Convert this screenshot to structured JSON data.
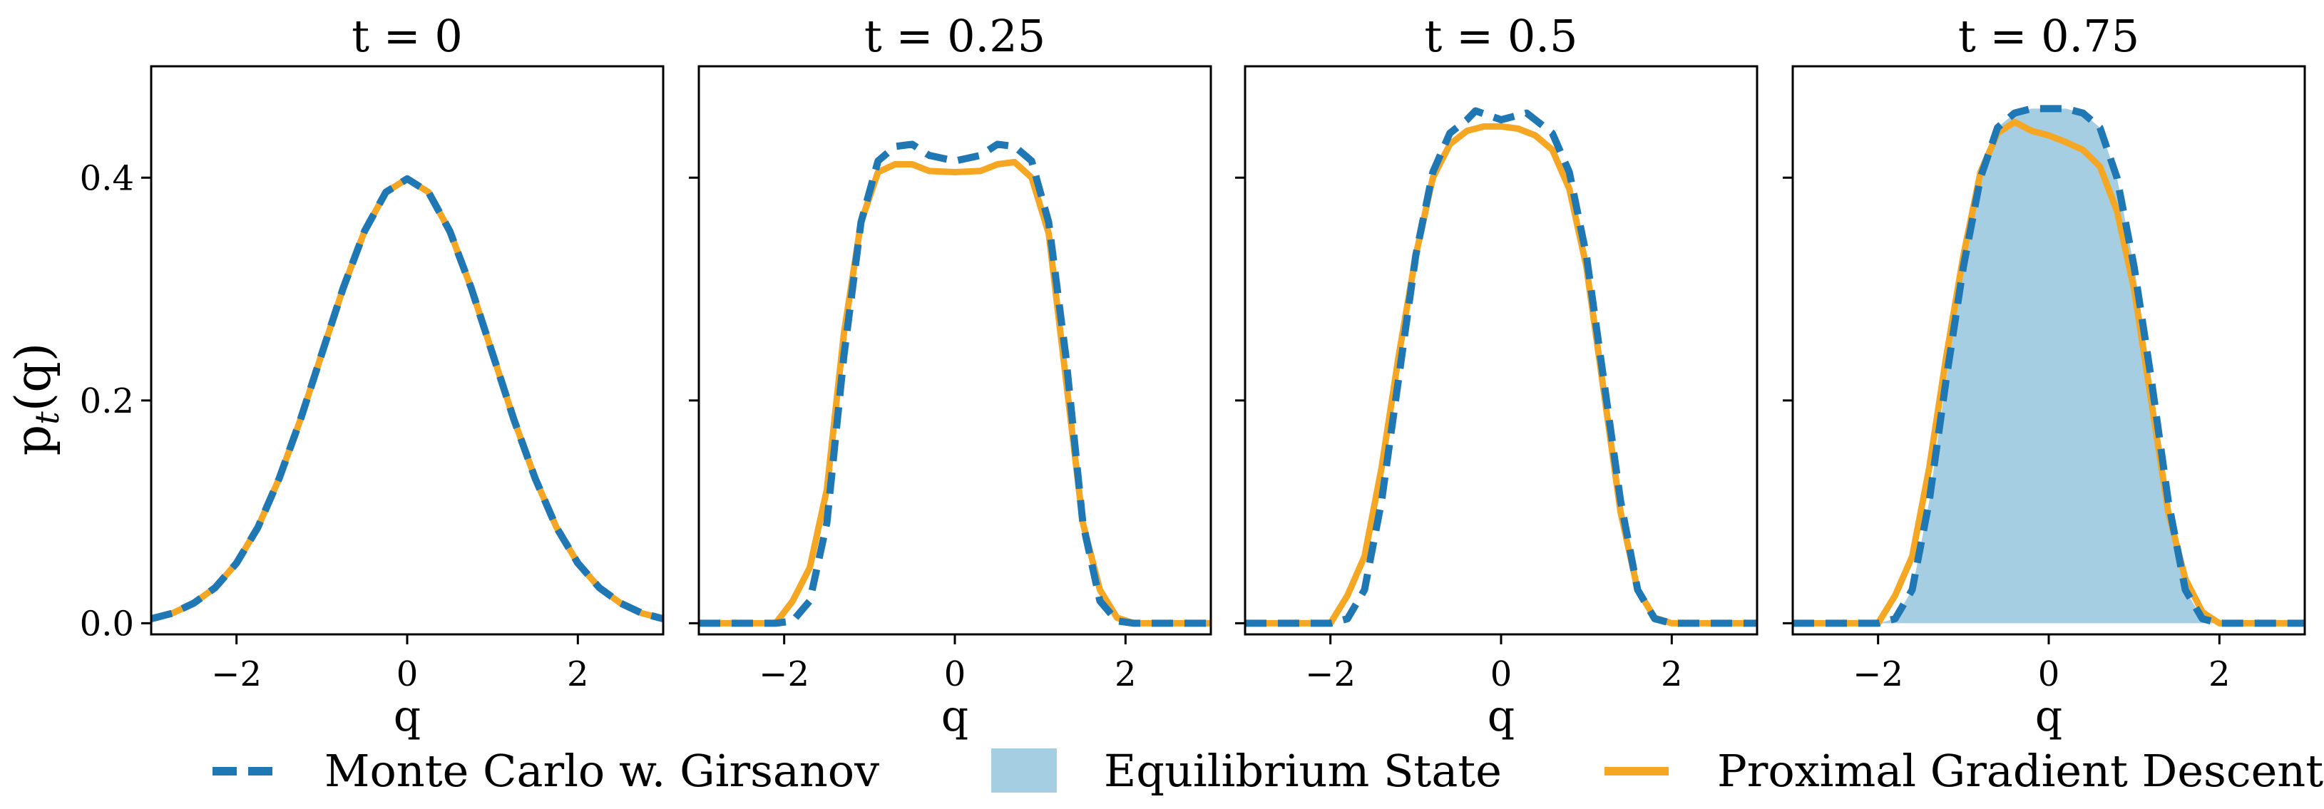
{
  "colors": {
    "mc": "#1f77b4",
    "pgd": "#f5a623",
    "equilibrium": "#a6cee3",
    "axis": "#000000"
  },
  "figure": {
    "ylabel": "p_t(q)",
    "ylabel_main": "p",
    "ylabel_sub": "t",
    "ylabel_rest": "(q)"
  },
  "legend": {
    "items": [
      {
        "label": "Monte Carlo w. Girsanov",
        "style": "dashed-line",
        "icon": "dashed-line-swatch"
      },
      {
        "label": "Equilibrium State",
        "style": "filled-box",
        "icon": "filled-box-swatch"
      },
      {
        "label": "Proximal Gradient Descent",
        "style": "solid-line",
        "icon": "solid-line-swatch"
      }
    ]
  },
  "chart_data": [
    {
      "type": "line",
      "title": "t = 0",
      "xlabel": "q",
      "ylabel": "p_t(q)",
      "xlim": [
        -3,
        3
      ],
      "ylim": [
        -0.01,
        0.5
      ],
      "xticks": [
        "−2",
        "0",
        "2"
      ],
      "yticks": [
        "0.0",
        "0.2",
        "0.4"
      ],
      "show_yticklabels": true,
      "grid": false,
      "series": [
        {
          "name": "Monte Carlo w. Girsanov",
          "x": [
            -3,
            -2.75,
            -2.5,
            -2.25,
            -2,
            -1.75,
            -1.5,
            -1.25,
            -1,
            -0.75,
            -0.5,
            -0.25,
            0,
            0.25,
            0.5,
            0.75,
            1,
            1.25,
            1.5,
            1.75,
            2,
            2.25,
            2.5,
            2.75,
            3
          ],
          "values": [
            0.004,
            0.009,
            0.018,
            0.032,
            0.054,
            0.086,
            0.13,
            0.183,
            0.242,
            0.301,
            0.352,
            0.387,
            0.399,
            0.387,
            0.352,
            0.301,
            0.242,
            0.183,
            0.13,
            0.086,
            0.054,
            0.032,
            0.018,
            0.009,
            0.004
          ]
        },
        {
          "name": "Proximal Gradient Descent",
          "x": [
            -3,
            -2.75,
            -2.5,
            -2.25,
            -2,
            -1.75,
            -1.5,
            -1.25,
            -1,
            -0.75,
            -0.5,
            -0.25,
            0,
            0.25,
            0.5,
            0.75,
            1,
            1.25,
            1.5,
            1.75,
            2,
            2.25,
            2.5,
            2.75,
            3
          ],
          "values": [
            0.004,
            0.009,
            0.018,
            0.032,
            0.054,
            0.086,
            0.13,
            0.183,
            0.242,
            0.301,
            0.352,
            0.387,
            0.399,
            0.387,
            0.352,
            0.301,
            0.242,
            0.183,
            0.13,
            0.086,
            0.054,
            0.032,
            0.018,
            0.009,
            0.004
          ]
        }
      ]
    },
    {
      "type": "line",
      "title": "t = 0.25",
      "xlabel": "q",
      "ylabel": "",
      "xlim": [
        -3,
        3
      ],
      "ylim": [
        -0.01,
        0.5
      ],
      "xticks": [
        "−2",
        "0",
        "2"
      ],
      "yticks": [
        "0.0",
        "0.2",
        "0.4"
      ],
      "show_yticklabels": false,
      "grid": false,
      "series": [
        {
          "name": "Monte Carlo w. Girsanov",
          "x": [
            -3,
            -2.1,
            -1.9,
            -1.7,
            -1.5,
            -1.3,
            -1.1,
            -0.9,
            -0.7,
            -0.5,
            -0.3,
            0,
            0.3,
            0.5,
            0.7,
            0.9,
            1.1,
            1.3,
            1.5,
            1.7,
            1.9,
            2.1,
            3
          ],
          "values": [
            0,
            0,
            0.002,
            0.02,
            0.09,
            0.24,
            0.36,
            0.415,
            0.428,
            0.43,
            0.42,
            0.415,
            0.42,
            0.43,
            0.428,
            0.415,
            0.36,
            0.24,
            0.09,
            0.02,
            0.002,
            0,
            0
          ]
        },
        {
          "name": "Proximal Gradient Descent",
          "x": [
            -3,
            -2.1,
            -1.9,
            -1.7,
            -1.5,
            -1.3,
            -1.1,
            -0.9,
            -0.7,
            -0.5,
            -0.3,
            0,
            0.3,
            0.5,
            0.7,
            0.9,
            1.1,
            1.3,
            1.5,
            1.7,
            1.9,
            2.1,
            3
          ],
          "values": [
            0,
            0,
            0.02,
            0.05,
            0.12,
            0.26,
            0.36,
            0.405,
            0.412,
            0.412,
            0.406,
            0.405,
            0.406,
            0.412,
            0.414,
            0.4,
            0.35,
            0.22,
            0.09,
            0.03,
            0.005,
            0,
            0
          ]
        }
      ]
    },
    {
      "type": "line",
      "title": "t = 0.5",
      "xlabel": "q",
      "ylabel": "",
      "xlim": [
        -3,
        3
      ],
      "ylim": [
        -0.01,
        0.5
      ],
      "xticks": [
        "−2",
        "0",
        "2"
      ],
      "yticks": [
        "0.0",
        "0.2",
        "0.4"
      ],
      "show_yticklabels": false,
      "grid": false,
      "series": [
        {
          "name": "Monte Carlo w. Girsanov",
          "x": [
            -3,
            -2,
            -1.8,
            -1.6,
            -1.4,
            -1.2,
            -1,
            -0.8,
            -0.6,
            -0.4,
            -0.3,
            0,
            0.3,
            0.4,
            0.6,
            0.8,
            1,
            1.2,
            1.4,
            1.6,
            1.8,
            2,
            3
          ],
          "values": [
            0,
            0,
            0.004,
            0.03,
            0.11,
            0.22,
            0.33,
            0.405,
            0.44,
            0.452,
            0.46,
            0.452,
            0.458,
            0.452,
            0.44,
            0.405,
            0.33,
            0.22,
            0.11,
            0.03,
            0.004,
            0,
            0
          ]
        },
        {
          "name": "Proximal Gradient Descent",
          "x": [
            -3,
            -2,
            -1.8,
            -1.6,
            -1.4,
            -1.2,
            -1,
            -0.8,
            -0.6,
            -0.4,
            -0.2,
            0,
            0.2,
            0.4,
            0.6,
            0.8,
            1,
            1.2,
            1.4,
            1.6,
            1.8,
            2,
            3
          ],
          "values": [
            0,
            0,
            0.025,
            0.06,
            0.14,
            0.24,
            0.33,
            0.4,
            0.43,
            0.442,
            0.446,
            0.446,
            0.444,
            0.438,
            0.425,
            0.39,
            0.32,
            0.21,
            0.1,
            0.03,
            0.005,
            0,
            0
          ]
        }
      ]
    },
    {
      "type": "line",
      "title": "t = 0.75",
      "xlabel": "q",
      "ylabel": "",
      "xlim": [
        -3,
        3
      ],
      "ylim": [
        -0.01,
        0.5
      ],
      "xticks": [
        "−2",
        "0",
        "2"
      ],
      "yticks": [
        "0.0",
        "0.2",
        "0.4"
      ],
      "show_yticklabels": false,
      "grid": false,
      "series": [
        {
          "name": "Equilibrium State",
          "x": [
            -3,
            -2,
            -1.8,
            -1.6,
            -1.4,
            -1.2,
            -1,
            -0.8,
            -0.6,
            -0.4,
            -0.2,
            0,
            0.2,
            0.4,
            0.6,
            0.8,
            1,
            1.2,
            1.4,
            1.6,
            1.8,
            2,
            3
          ],
          "values": [
            0,
            0,
            0.004,
            0.03,
            0.11,
            0.22,
            0.32,
            0.4,
            0.445,
            0.458,
            0.462,
            0.462,
            0.462,
            0.458,
            0.445,
            0.4,
            0.32,
            0.22,
            0.11,
            0.03,
            0.004,
            0,
            0
          ]
        },
        {
          "name": "Monte Carlo w. Girsanov",
          "x": [
            -3,
            -2,
            -1.8,
            -1.6,
            -1.4,
            -1.2,
            -1,
            -0.8,
            -0.6,
            -0.4,
            -0.2,
            0,
            0.2,
            0.4,
            0.6,
            0.8,
            1,
            1.2,
            1.4,
            1.6,
            1.8,
            2,
            3
          ],
          "values": [
            0,
            0,
            0.004,
            0.03,
            0.11,
            0.22,
            0.32,
            0.4,
            0.445,
            0.458,
            0.462,
            0.462,
            0.462,
            0.458,
            0.445,
            0.4,
            0.32,
            0.22,
            0.11,
            0.03,
            0.004,
            0,
            0
          ]
        },
        {
          "name": "Proximal Gradient Descent",
          "x": [
            -3,
            -2,
            -1.8,
            -1.6,
            -1.4,
            -1.2,
            -1,
            -0.8,
            -0.6,
            -0.4,
            -0.2,
            0,
            0.2,
            0.4,
            0.6,
            0.8,
            1,
            1.2,
            1.4,
            1.6,
            1.8,
            2,
            3
          ],
          "values": [
            0,
            0,
            0.025,
            0.06,
            0.14,
            0.24,
            0.33,
            0.405,
            0.44,
            0.45,
            0.442,
            0.438,
            0.432,
            0.425,
            0.41,
            0.37,
            0.3,
            0.2,
            0.1,
            0.04,
            0.01,
            0,
            0
          ]
        }
      ]
    }
  ]
}
